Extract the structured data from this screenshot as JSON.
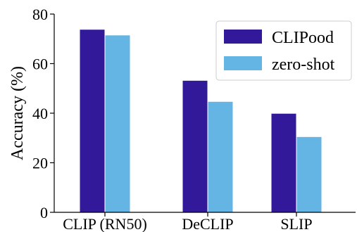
{
  "chart_data": {
    "type": "bar",
    "categories": [
      "CLIP (RN50)",
      "DeCLIP",
      "SLIP"
    ],
    "series": [
      {
        "name": "CLIPood",
        "values": [
          73.7,
          53.1,
          39.8
        ],
        "color": "#32199a"
      },
      {
        "name": "zero-shot",
        "values": [
          71.4,
          44.6,
          30.4
        ],
        "color": "#64b4e4"
      }
    ],
    "title": "",
    "xlabel": "",
    "ylabel": "Accuracy (%)",
    "ylim": [
      0,
      80
    ],
    "yticks": [
      "0",
      "20",
      "40",
      "60",
      "80"
    ],
    "grid": false,
    "legend_position": "top-right"
  }
}
